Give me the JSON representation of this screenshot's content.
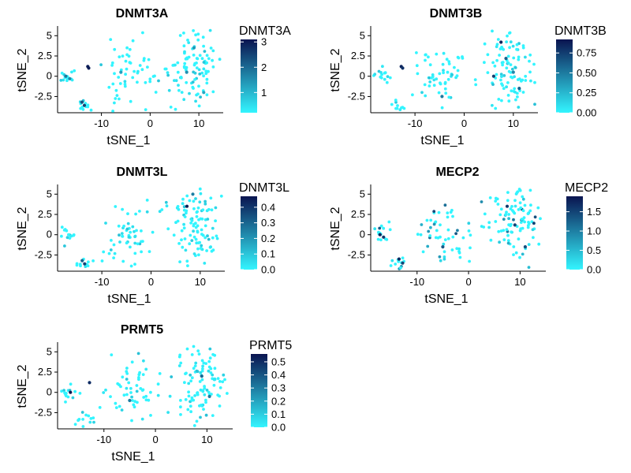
{
  "chart_data": [
    {
      "type": "scatter",
      "title": "DNMT3A",
      "xlabel": "tSNE_1",
      "ylabel": "tSNE_2",
      "xticks": [
        -10,
        0,
        10
      ],
      "yticks": [
        -2.5,
        0.0,
        2.5,
        5.0
      ],
      "xlim": [
        -19,
        15
      ],
      "ylim": [
        -4.5,
        6.0
      ],
      "legend": {
        "title": "DNMT3A",
        "ticks": [
          1,
          2,
          3
        ],
        "min": 0.2,
        "max": 3.1,
        "low_color": "#33F5FF",
        "high_color": "#0A1450"
      },
      "hi_points": [
        [
          -12.8,
          1.2,
          3.0
        ],
        [
          -12.6,
          1.0,
          3.0
        ],
        [
          -13.5,
          -3.6,
          2.5
        ],
        [
          -14,
          -3.2,
          2.3
        ],
        [
          -17.3,
          0.0,
          1.8
        ],
        [
          -16.5,
          -0.3,
          1.6
        ],
        [
          7.5,
          0.5,
          1.5
        ],
        [
          9,
          3.5,
          1.4
        ],
        [
          -6,
          0.5,
          1.3
        ],
        [
          11,
          -2.0,
          1.2
        ]
      ],
      "seed": 11
    },
    {
      "type": "scatter",
      "title": "DNMT3B",
      "xlabel": "tSNE_1",
      "ylabel": "tSNE_2",
      "xticks": [
        -10,
        0,
        10
      ],
      "yticks": [
        -2.5,
        0.0,
        2.5,
        5.0
      ],
      "xlim": [
        -19,
        15
      ],
      "ylim": [
        -4.5,
        6.0
      ],
      "legend": {
        "title": "DNMT3B",
        "ticks": [
          0.0,
          0.25,
          0.5,
          0.75
        ],
        "min": 0.0,
        "max": 0.92,
        "low_color": "#33F5FF",
        "high_color": "#0A1450"
      },
      "hi_points": [
        [
          -12.8,
          1.2,
          0.85
        ],
        [
          -12.5,
          1.0,
          0.8
        ],
        [
          7.5,
          4.2,
          0.85
        ],
        [
          6,
          0,
          0.75
        ],
        [
          8.5,
          2.2,
          0.6
        ],
        [
          11.2,
          -1.5,
          0.6
        ],
        [
          -4.5,
          -2.5,
          0.5
        ],
        [
          10,
          0.5,
          0.45
        ]
      ],
      "seed": 23
    },
    {
      "type": "scatter",
      "title": "DNMT3L",
      "xlabel": "tSNE_1",
      "ylabel": "tSNE_2",
      "xticks": [
        -10,
        0,
        10
      ],
      "yticks": [
        -2.5,
        0.0,
        2.5,
        5.0
      ],
      "xlim": [
        -19,
        15
      ],
      "ylim": [
        -4.5,
        6.0
      ],
      "legend": {
        "title": "DNMT3L",
        "ticks": [
          0.0,
          0.1,
          0.2,
          0.3,
          0.4
        ],
        "min": 0.0,
        "max": 0.47,
        "low_color": "#33F5FF",
        "high_color": "#0A1450"
      },
      "hi_points": [
        [
          7.3,
          3.5,
          0.45
        ],
        [
          -13.5,
          -3.6,
          0.38
        ],
        [
          -14,
          -3.2,
          0.3
        ],
        [
          8.5,
          5.0,
          0.25
        ]
      ],
      "seed": 37
    },
    {
      "type": "scatter",
      "title": "MECP2",
      "xlabel": "tSNE_1",
      "ylabel": "tSNE_2",
      "xticks": [
        -10,
        0,
        10
      ],
      "yticks": [
        -2.5,
        0.0,
        2.5,
        5.0
      ],
      "xlim": [
        -19,
        15
      ],
      "ylim": [
        -4.5,
        6.0
      ],
      "legend": {
        "title": "MECP2",
        "ticks": [
          0.0,
          0.5,
          1.0,
          1.5
        ],
        "min": 0.0,
        "max": 1.9,
        "low_color": "#33F5FF",
        "high_color": "#0A1450"
      },
      "hi_points": [
        [
          -17.2,
          0.0,
          1.8
        ],
        [
          -16.5,
          -0.3,
          1.6
        ],
        [
          -13.5,
          -3.0,
          1.7
        ],
        [
          -12.8,
          -3.5,
          1.5
        ],
        [
          7.5,
          3.5,
          1.6
        ],
        [
          9,
          1.2,
          1.5
        ],
        [
          11,
          -1.5,
          1.4
        ],
        [
          -5,
          -1.5,
          1.3
        ]
      ],
      "seed": 51,
      "base_scale": 0.85
    },
    {
      "type": "scatter",
      "title": "PRMT5",
      "xlabel": "tSNE_1",
      "ylabel": "tSNE_2",
      "xticks": [
        -10,
        0,
        10
      ],
      "yticks": [
        -2.5,
        0.0,
        2.5,
        5.0
      ],
      "xlim": [
        -19,
        15
      ],
      "ylim": [
        -4.5,
        6.0
      ],
      "legend": {
        "title": "PRMT5",
        "ticks": [
          0.0,
          0.1,
          0.2,
          0.3,
          0.4,
          0.5
        ],
        "min": 0.0,
        "max": 0.56,
        "low_color": "#33F5FF",
        "high_color": "#0A1450"
      },
      "hi_points": [
        [
          -16.5,
          0.0,
          0.55
        ],
        [
          -12.8,
          1.2,
          0.5
        ],
        [
          -5,
          -1,
          0.3
        ],
        [
          9,
          2,
          0.35
        ],
        [
          10.5,
          -0.5,
          0.3
        ]
      ],
      "seed": 67
    }
  ]
}
